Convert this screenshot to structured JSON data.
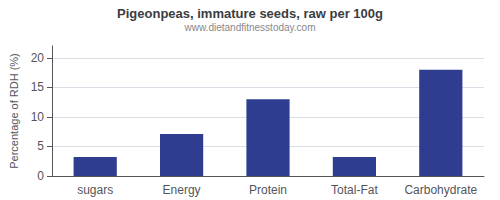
{
  "chart_data": {
    "type": "bar",
    "title": "Pigeonpeas, immature seeds, raw per 100g",
    "subtitle": "www.dietandfitnesstoday.com",
    "categories": [
      "sugars",
      "Energy",
      "Protein",
      "Total-Fat",
      "Carbohydrate"
    ],
    "values": [
      3.2,
      7.1,
      13.0,
      3.2,
      18.0
    ],
    "color": "#2e3d8f",
    "ylabel": "Percentage of RDH (%)",
    "ylim": [
      0,
      22
    ],
    "yticks": [
      0,
      5,
      10,
      15,
      20
    ],
    "grid": true
  }
}
